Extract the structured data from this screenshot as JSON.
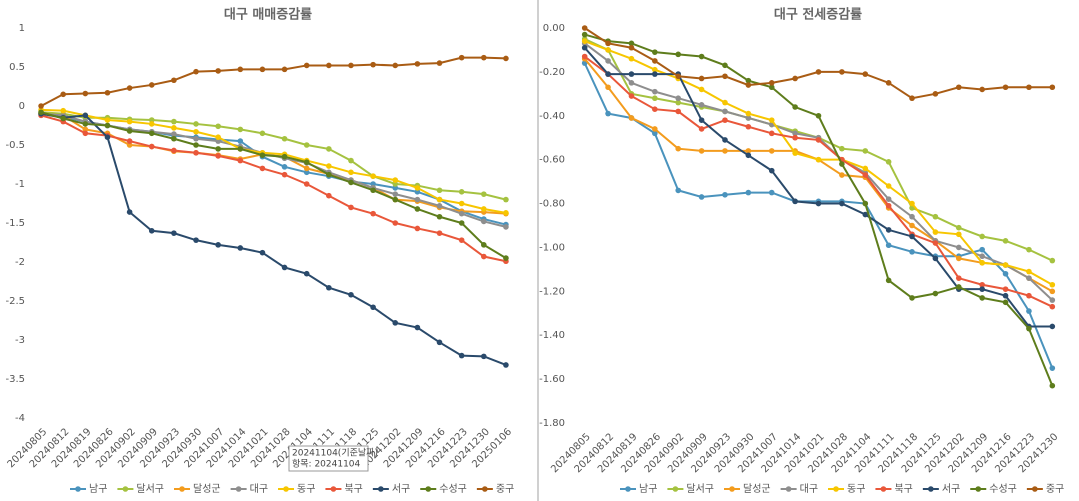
{
  "chart_data": [
    {
      "type": "line",
      "title": "대구 매매증감률",
      "categories": [
        "20240805",
        "20240812",
        "20240819",
        "20240826",
        "20240902",
        "20240909",
        "20240923",
        "20240930",
        "20241007",
        "20241014",
        "20241021",
        "20241028",
        "20241104",
        "20241111",
        "20241118",
        "20241125",
        "20241202",
        "20241209",
        "20241216",
        "20241223",
        "20241230",
        "20250106"
      ],
      "ylim": [
        -4,
        1
      ],
      "yticks": [
        1,
        0.5,
        0,
        -0.5,
        -1,
        -1.5,
        -2,
        -2.5,
        -3,
        -3.5,
        -4
      ],
      "annotations": [
        "20241104(기준날짜)",
        "항목: 20241104"
      ],
      "series": [
        {
          "name": "남구",
          "color": "#4a93bd",
          "values": [
            -0.1,
            -0.14,
            -0.2,
            -0.25,
            -0.3,
            -0.33,
            -0.38,
            -0.4,
            -0.43,
            -0.45,
            -0.65,
            -0.78,
            -0.85,
            -0.9,
            -0.97,
            -1.0,
            -1.05,
            -1.1,
            -1.2,
            -1.35,
            -1.45,
            -1.52
          ]
        },
        {
          "name": "달서구",
          "color": "#a5c240",
          "values": [
            -0.08,
            -0.1,
            -0.15,
            -0.15,
            -0.17,
            -0.18,
            -0.2,
            -0.23,
            -0.26,
            -0.3,
            -0.35,
            -0.42,
            -0.5,
            -0.55,
            -0.7,
            -0.9,
            -1.0,
            -1.02,
            -1.08,
            -1.1,
            -1.13,
            -1.2
          ]
        },
        {
          "name": "달성군",
          "color": "#f39c1e",
          "values": [
            -0.1,
            -0.12,
            -0.3,
            -0.35,
            -0.5,
            -0.52,
            -0.58,
            -0.6,
            -0.63,
            -0.68,
            -0.62,
            -0.65,
            -0.8,
            -0.87,
            -0.95,
            -1.05,
            -1.2,
            -1.22,
            -1.3,
            -1.35,
            -1.36,
            -1.38
          ]
        },
        {
          "name": "대구",
          "color": "#8e8e8e",
          "values": [
            -0.1,
            -0.12,
            -0.2,
            -0.25,
            -0.3,
            -0.33,
            -0.36,
            -0.42,
            -0.45,
            -0.52,
            -0.6,
            -0.67,
            -0.73,
            -0.85,
            -0.95,
            -1.05,
            -1.13,
            -1.2,
            -1.28,
            -1.38,
            -1.48,
            -1.55
          ]
        },
        {
          "name": "동구",
          "color": "#f7c600",
          "values": [
            -0.05,
            -0.06,
            -0.12,
            -0.18,
            -0.2,
            -0.23,
            -0.28,
            -0.33,
            -0.4,
            -0.55,
            -0.6,
            -0.62,
            -0.7,
            -0.77,
            -0.85,
            -0.9,
            -0.95,
            -1.05,
            -1.2,
            -1.25,
            -1.32,
            -1.37
          ]
        },
        {
          "name": "북구",
          "color": "#e9573a",
          "values": [
            -0.12,
            -0.2,
            -0.35,
            -0.38,
            -0.45,
            -0.52,
            -0.57,
            -0.6,
            -0.64,
            -0.7,
            -0.8,
            -0.88,
            -1.0,
            -1.15,
            -1.3,
            -1.38,
            -1.5,
            -1.57,
            -1.63,
            -1.72,
            -1.93,
            -1.99
          ]
        },
        {
          "name": "서구",
          "color": "#2a4a6b",
          "values": [
            -0.1,
            -0.15,
            -0.12,
            -0.4,
            -1.36,
            -1.6,
            -1.63,
            -1.72,
            -1.78,
            -1.82,
            -1.88,
            -2.07,
            -2.15,
            -2.33,
            -2.42,
            -2.58,
            -2.78,
            -2.84,
            -3.03,
            -3.2,
            -3.21,
            -3.32
          ]
        },
        {
          "name": "수성구",
          "color": "#5e7d1c",
          "values": [
            -0.08,
            -0.16,
            -0.23,
            -0.25,
            -0.32,
            -0.35,
            -0.42,
            -0.5,
            -0.55,
            -0.55,
            -0.63,
            -0.65,
            -0.72,
            -0.88,
            -0.98,
            -1.08,
            -1.2,
            -1.32,
            -1.42,
            -1.5,
            -1.78,
            -1.95
          ]
        },
        {
          "name": "중구",
          "color": "#a95c14",
          "values": [
            0.0,
            0.15,
            0.16,
            0.17,
            0.23,
            0.27,
            0.33,
            0.44,
            0.45,
            0.47,
            0.47,
            0.47,
            0.52,
            0.52,
            0.52,
            0.53,
            0.52,
            0.54,
            0.55,
            0.62,
            0.62,
            0.61
          ]
        }
      ]
    },
    {
      "type": "line",
      "title": "대구 전세증감률",
      "categories": [
        "20240805",
        "20240812",
        "20240819",
        "20240826",
        "20240902",
        "20240909",
        "20240923",
        "20240930",
        "20241007",
        "20241014",
        "20241021",
        "20241028",
        "20241104",
        "20241111",
        "20241118",
        "20241125",
        "20241202",
        "20241209",
        "20241216",
        "20241223",
        "20241230"
      ],
      "ylim": [
        -1.8,
        0
      ],
      "yticks": [
        {
          "value": 0,
          "label": "0.00"
        },
        {
          "value": -0.2,
          "label": "-0.20"
        },
        {
          "value": -0.4,
          "label": "-0.40"
        },
        {
          "value": -0.6,
          "label": "-0.60"
        },
        {
          "value": -0.8,
          "label": "-0.80"
        },
        {
          "value": -1,
          "label": "-1.00"
        },
        {
          "value": -1.2,
          "label": "-1.20"
        },
        {
          "value": -1.4,
          "label": "-1.40"
        },
        {
          "value": -1.6,
          "label": "-1.60"
        },
        {
          "value": -1.8,
          "label": "-1.80"
        }
      ],
      "series": [
        {
          "name": "남구",
          "color": "#4a93bd",
          "values": [
            -0.16,
            -0.39,
            -0.41,
            -0.48,
            -0.74,
            -0.77,
            -0.76,
            -0.75,
            -0.75,
            -0.79,
            -0.79,
            -0.79,
            -0.8,
            -0.99,
            -1.02,
            -1.04,
            -1.04,
            -1.01,
            -1.12,
            -1.29,
            -1.55
          ]
        },
        {
          "name": "달서구",
          "color": "#a5c240",
          "values": [
            -0.05,
            -0.1,
            -0.3,
            -0.32,
            -0.34,
            -0.36,
            -0.38,
            -0.41,
            -0.44,
            -0.47,
            -0.5,
            -0.55,
            -0.56,
            -0.61,
            -0.82,
            -0.86,
            -0.91,
            -0.95,
            -0.97,
            -1.01,
            -1.06
          ]
        },
        {
          "name": "달성군",
          "color": "#f39c1e",
          "values": [
            -0.14,
            -0.27,
            -0.41,
            -0.46,
            -0.55,
            -0.56,
            -0.56,
            -0.56,
            -0.56,
            -0.56,
            -0.6,
            -0.67,
            -0.68,
            -0.82,
            -0.9,
            -0.97,
            -1.05,
            -1.07,
            -1.08,
            -1.14,
            -1.2
          ]
        },
        {
          "name": "대구",
          "color": "#8e8e8e",
          "values": [
            -0.07,
            -0.15,
            -0.25,
            -0.29,
            -0.32,
            -0.35,
            -0.38,
            -0.41,
            -0.44,
            -0.48,
            -0.5,
            -0.6,
            -0.66,
            -0.78,
            -0.86,
            -0.97,
            -1.0,
            -1.04,
            -1.08,
            -1.14,
            -1.24
          ]
        },
        {
          "name": "동구",
          "color": "#f7c600",
          "values": [
            -0.06,
            -0.1,
            -0.14,
            -0.19,
            -0.23,
            -0.28,
            -0.34,
            -0.39,
            -0.42,
            -0.57,
            -0.6,
            -0.6,
            -0.64,
            -0.72,
            -0.8,
            -0.93,
            -0.94,
            -1.07,
            -1.08,
            -1.11,
            -1.17
          ]
        },
        {
          "name": "북구",
          "color": "#e9573a",
          "values": [
            -0.13,
            -0.21,
            -0.31,
            -0.37,
            -0.38,
            -0.46,
            -0.42,
            -0.45,
            -0.48,
            -0.5,
            -0.51,
            -0.6,
            -0.67,
            -0.81,
            -0.94,
            -0.98,
            -1.14,
            -1.17,
            -1.19,
            -1.22,
            -1.27
          ]
        },
        {
          "name": "서구",
          "color": "#2a4a6b",
          "values": [
            -0.09,
            -0.21,
            -0.21,
            -0.21,
            -0.21,
            -0.42,
            -0.51,
            -0.58,
            -0.65,
            -0.79,
            -0.8,
            -0.8,
            -0.85,
            -0.92,
            -0.95,
            -1.05,
            -1.19,
            -1.19,
            -1.22,
            -1.36,
            -1.36
          ]
        },
        {
          "name": "수성구",
          "color": "#5e7d1c",
          "values": [
            -0.03,
            -0.06,
            -0.07,
            -0.11,
            -0.12,
            -0.13,
            -0.17,
            -0.24,
            -0.27,
            -0.36,
            -0.4,
            -0.62,
            -0.8,
            -1.15,
            -1.23,
            -1.21,
            -1.18,
            -1.23,
            -1.25,
            -1.37,
            -1.63
          ]
        },
        {
          "name": "중구",
          "color": "#a95c14",
          "values": [
            0.0,
            -0.07,
            -0.09,
            -0.15,
            -0.22,
            -0.23,
            -0.22,
            -0.26,
            -0.25,
            -0.23,
            -0.2,
            -0.2,
            -0.21,
            -0.25,
            -0.32,
            -0.3,
            -0.27,
            -0.28,
            -0.27,
            -0.27,
            -0.27
          ]
        }
      ]
    }
  ]
}
